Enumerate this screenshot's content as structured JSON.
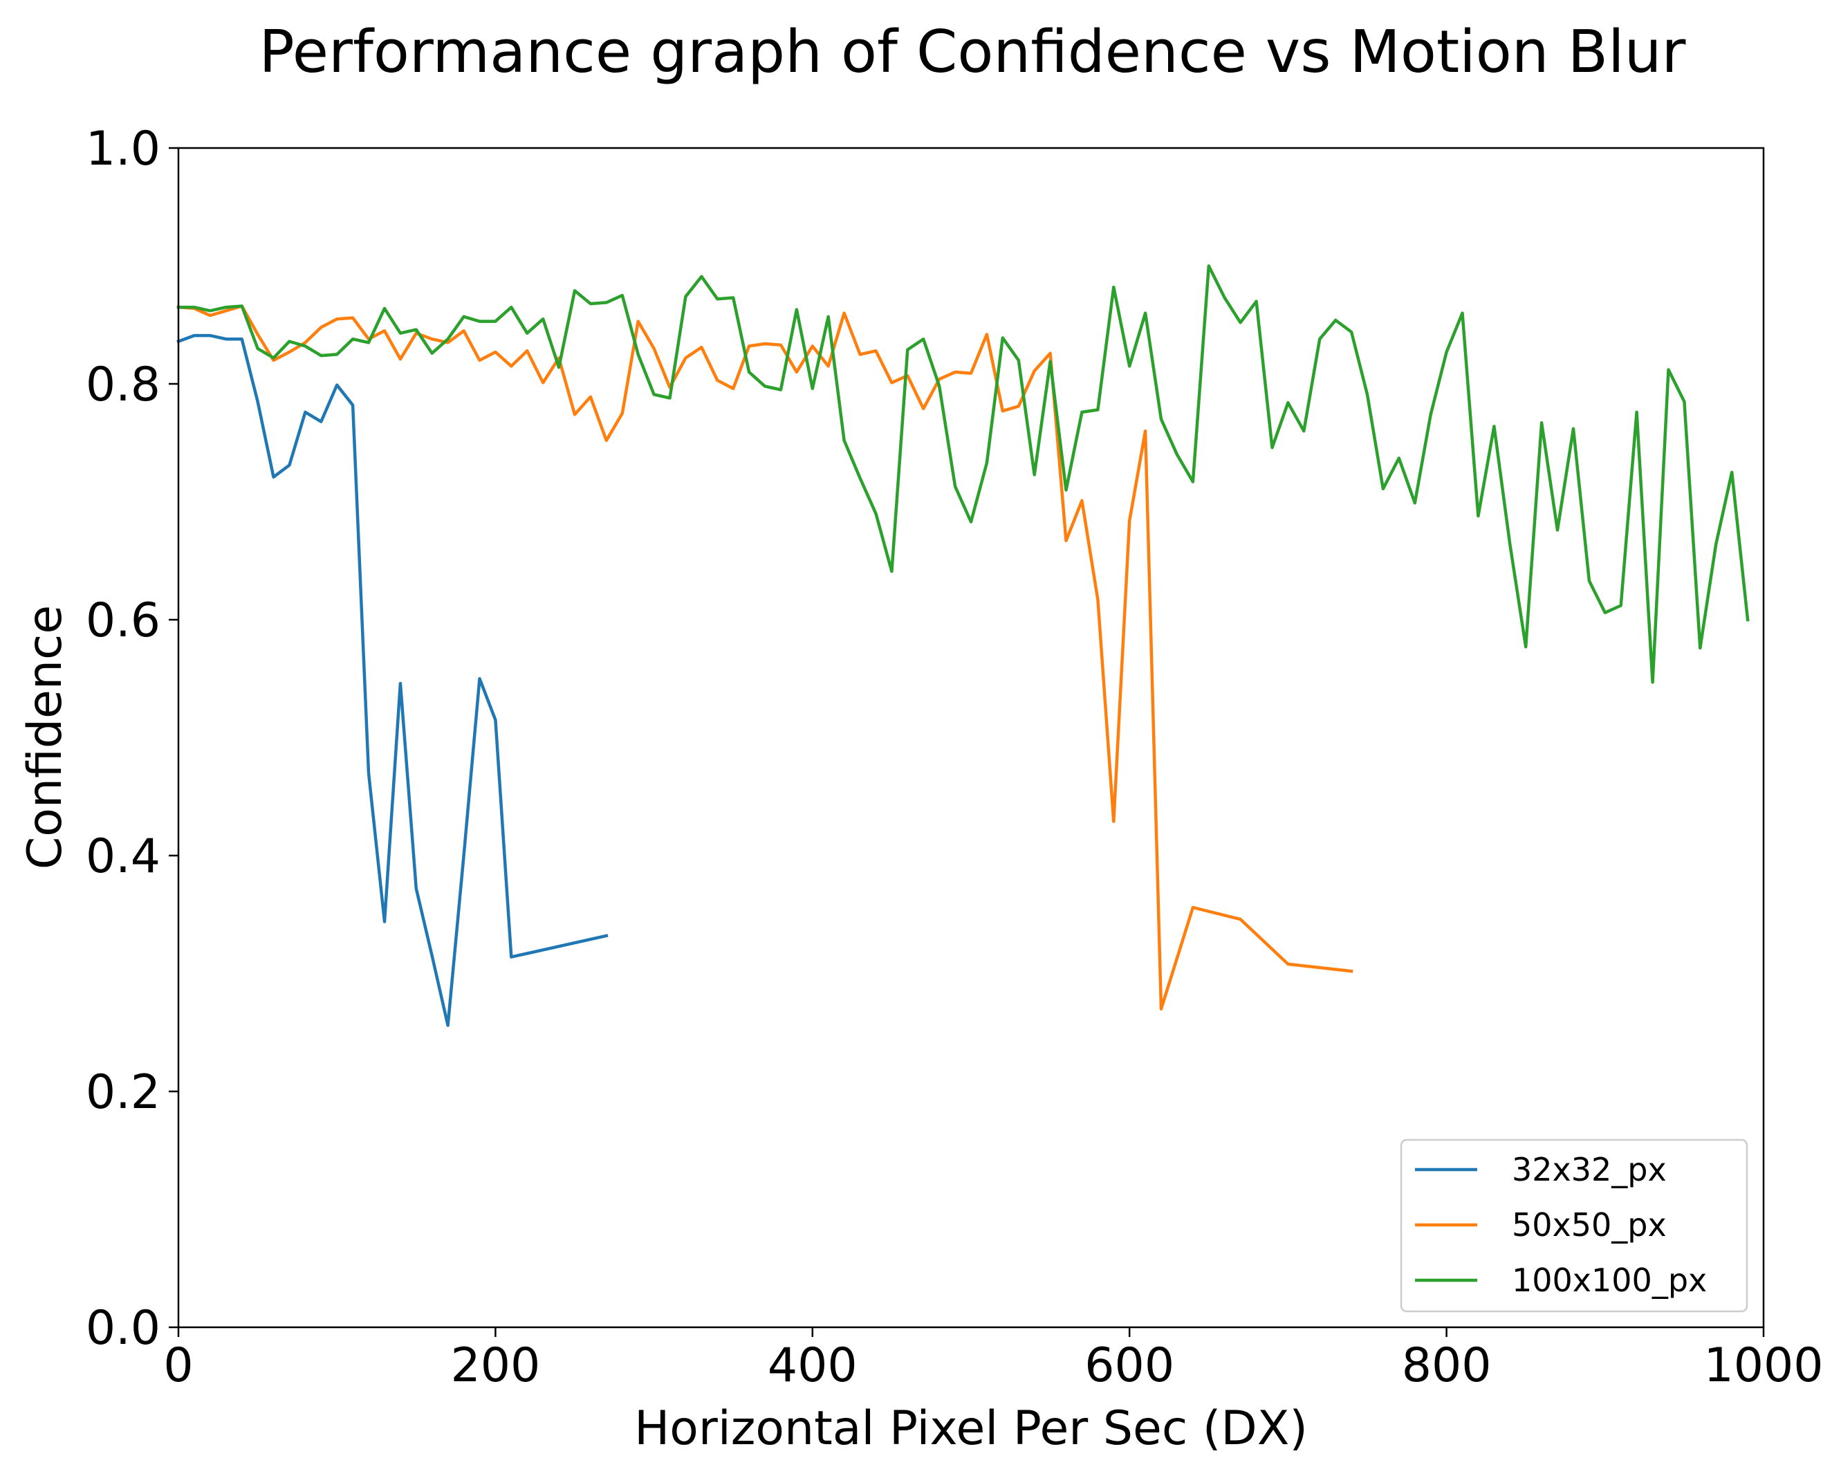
{
  "chart_data": {
    "type": "line",
    "title": "Performance graph of Confidence vs Motion Blur",
    "xlabel": "Horizontal Pixel Per Sec (DX)",
    "ylabel": "Confidence",
    "xlim": [
      0,
      1000
    ],
    "ylim": [
      0.0,
      1.0
    ],
    "xticks": [
      0,
      200,
      400,
      600,
      800,
      1000
    ],
    "xtick_labels": [
      "0",
      "200",
      "400",
      "600",
      "800",
      "1000"
    ],
    "yticks": [
      0.0,
      0.2,
      0.4,
      0.6,
      0.8,
      1.0
    ],
    "ytick_labels": [
      "0.0",
      "0.2",
      "0.4",
      "0.6",
      "0.8",
      "1.0"
    ],
    "grid": false,
    "legend_position": "lower-right",
    "series": [
      {
        "name": "32x32_px",
        "color": "#1f77b4",
        "x": [
          0,
          10,
          20,
          30,
          40,
          50,
          60,
          70,
          80,
          90,
          100,
          110,
          120,
          130,
          140,
          150,
          160,
          170,
          180,
          190,
          200,
          210,
          270
        ],
        "y": [
          0.836,
          0.841,
          0.841,
          0.838,
          0.838,
          0.785,
          0.721,
          0.731,
          0.776,
          0.768,
          0.799,
          0.782,
          0.47,
          0.344,
          0.546,
          0.372,
          0.315,
          0.256,
          0.4,
          0.55,
          0.515,
          0.314,
          0.332
        ]
      },
      {
        "name": "50x50_px",
        "color": "#ff7f0e",
        "x": [
          0,
          10,
          20,
          30,
          40,
          50,
          60,
          70,
          80,
          90,
          100,
          110,
          120,
          130,
          140,
          150,
          160,
          170,
          180,
          190,
          200,
          210,
          220,
          230,
          240,
          250,
          260,
          270,
          280,
          290,
          300,
          310,
          320,
          330,
          340,
          350,
          360,
          370,
          380,
          390,
          400,
          410,
          420,
          430,
          440,
          450,
          460,
          470,
          480,
          490,
          500,
          510,
          520,
          530,
          540,
          550,
          560,
          570,
          580,
          590,
          600,
          610,
          620,
          640,
          670,
          700,
          740
        ],
        "y": [
          0.865,
          0.864,
          0.858,
          0.862,
          0.866,
          0.842,
          0.82,
          0.827,
          0.835,
          0.848,
          0.855,
          0.856,
          0.838,
          0.845,
          0.821,
          0.843,
          0.838,
          0.835,
          0.845,
          0.82,
          0.827,
          0.815,
          0.828,
          0.801,
          0.822,
          0.774,
          0.789,
          0.752,
          0.775,
          0.853,
          0.83,
          0.797,
          0.822,
          0.831,
          0.803,
          0.796,
          0.832,
          0.834,
          0.833,
          0.81,
          0.832,
          0.815,
          0.86,
          0.825,
          0.828,
          0.801,
          0.807,
          0.779,
          0.804,
          0.81,
          0.809,
          0.842,
          0.777,
          0.781,
          0.811,
          0.826,
          0.667,
          0.701,
          0.617,
          0.429,
          0.684,
          0.76,
          0.27,
          0.356,
          0.346,
          0.308,
          0.302
        ]
      },
      {
        "name": "100x100_px",
        "color": "#2ca02c",
        "x": [
          0,
          10,
          20,
          30,
          40,
          50,
          60,
          70,
          80,
          90,
          100,
          110,
          120,
          130,
          140,
          150,
          160,
          170,
          180,
          190,
          200,
          210,
          220,
          230,
          240,
          250,
          260,
          270,
          280,
          290,
          300,
          310,
          320,
          330,
          340,
          350,
          360,
          370,
          380,
          390,
          400,
          410,
          420,
          430,
          440,
          450,
          460,
          470,
          480,
          490,
          500,
          510,
          520,
          530,
          540,
          550,
          560,
          570,
          580,
          590,
          600,
          610,
          620,
          630,
          640,
          650,
          660,
          670,
          680,
          690,
          700,
          710,
          720,
          730,
          740,
          750,
          760,
          770,
          780,
          790,
          800,
          810,
          820,
          830,
          840,
          850,
          860,
          870,
          880,
          890,
          900,
          910,
          920,
          930,
          940,
          950,
          960,
          970,
          980,
          990
        ],
        "y": [
          0.865,
          0.865,
          0.862,
          0.865,
          0.866,
          0.83,
          0.822,
          0.836,
          0.832,
          0.824,
          0.825,
          0.838,
          0.835,
          0.864,
          0.843,
          0.846,
          0.826,
          0.838,
          0.857,
          0.853,
          0.853,
          0.865,
          0.843,
          0.855,
          0.814,
          0.879,
          0.868,
          0.869,
          0.875,
          0.825,
          0.791,
          0.788,
          0.874,
          0.891,
          0.872,
          0.873,
          0.81,
          0.798,
          0.795,
          0.863,
          0.796,
          0.857,
          0.752,
          0.72,
          0.69,
          0.641,
          0.829,
          0.838,
          0.798,
          0.713,
          0.683,
          0.733,
          0.839,
          0.82,
          0.723,
          0.819,
          0.71,
          0.776,
          0.778,
          0.882,
          0.815,
          0.86,
          0.77,
          0.74,
          0.717,
          0.9,
          0.873,
          0.852,
          0.87,
          0.746,
          0.784,
          0.76,
          0.838,
          0.854,
          0.844,
          0.791,
          0.711,
          0.737,
          0.699,
          0.774,
          0.827,
          0.86,
          0.688,
          0.764,
          0.664,
          0.577,
          0.767,
          0.676,
          0.762,
          0.633,
          0.606,
          0.612,
          0.776,
          0.547,
          0.812,
          0.785,
          0.576,
          0.664,
          0.725,
          0.6
        ]
      }
    ]
  }
}
